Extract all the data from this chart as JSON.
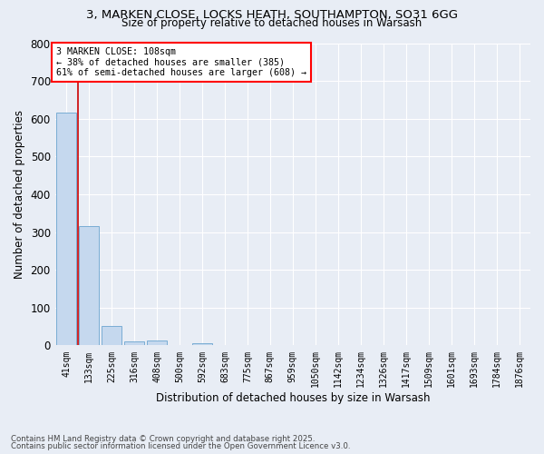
{
  "title1": "3, MARKEN CLOSE, LOCKS HEATH, SOUTHAMPTON, SO31 6GG",
  "title2": "Size of property relative to detached houses in Warsash",
  "xlabel": "Distribution of detached houses by size in Warsash",
  "ylabel": "Number of detached properties",
  "bar_color": "#c5d8ee",
  "bar_edge_color": "#7aadd4",
  "marker_color": "#cc0000",
  "background_color": "#e8edf5",
  "grid_color": "#ffffff",
  "categories": [
    "41sqm",
    "133sqm",
    "225sqm",
    "316sqm",
    "408sqm",
    "500sqm",
    "592sqm",
    "683sqm",
    "775sqm",
    "867sqm",
    "959sqm",
    "1050sqm",
    "1142sqm",
    "1234sqm",
    "1326sqm",
    "1417sqm",
    "1509sqm",
    "1601sqm",
    "1693sqm",
    "1784sqm",
    "1876sqm"
  ],
  "values": [
    617,
    316,
    52,
    11,
    14,
    0,
    7,
    0,
    0,
    0,
    0,
    0,
    0,
    0,
    0,
    0,
    0,
    0,
    0,
    0,
    0
  ],
  "ylim": [
    0,
    800
  ],
  "yticks": [
    0,
    100,
    200,
    300,
    400,
    500,
    600,
    700,
    800
  ],
  "marker_label_line1": "3 MARKEN CLOSE: 108sqm",
  "marker_label_line2": "← 38% of detached houses are smaller (385)",
  "marker_label_line3": "61% of semi-detached houses are larger (608) →",
  "footer1": "Contains HM Land Registry data © Crown copyright and database right 2025.",
  "footer2": "Contains public sector information licensed under the Open Government Licence v3.0."
}
